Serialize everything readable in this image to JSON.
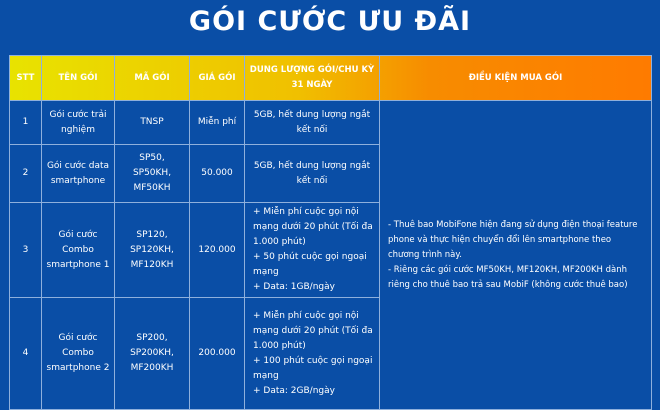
{
  "title": "GÓI CƯỚC ƯU ĐÃI",
  "headers": [
    "STT",
    "TÊN GÓI",
    "MÃ GÓI",
    "GIÁ GÓI",
    "DUNG LƯỢNG GÓI/CHU KỲ 31 NGÀY",
    "ĐIỀU KIỆN MUA GÓI"
  ],
  "rows": [
    {
      "stt": "1",
      "name": "Gói cước trải nghiệm",
      "code": "TNSP",
      "price": "Miễn phí",
      "data": [
        "5GB, hết dung lượng ngắt kết nối"
      ]
    },
    {
      "stt": "2",
      "name": "Gói cước data smartphone",
      "code": "SP50, SP50KH, MF50KH",
      "price": "50.000",
      "data": [
        "5GB, hết dung lượng ngắt kết nối"
      ]
    },
    {
      "stt": "3",
      "name": "Gói cước Combo smartphone 1",
      "code": "SP120, SP120KH, MF120KH",
      "price": "120.000",
      "data": [
        "+ Miễn phí cuộc gọi nội mạng dưới 20 phút (Tối đa 1.000 phút)",
        "+ 50 phút cuộc gọi ngoại mạng",
        "+ Data: 1GB/ngày"
      ]
    },
    {
      "stt": "4",
      "name": "Gói cước Combo smartphone 2",
      "code": "SP200, SP200KH, MF200KH",
      "price": "200.000",
      "data": [
        "+ Miễn phí cuộc gọi nội mạng dưới 20 phút (Tối đa 1.000 phút)",
        "+ 100 phút cuộc gọi ngoại mạng",
        "+ Data: 2GB/ngày"
      ]
    }
  ],
  "conditions": [
    "- Thuê bao MobiFone hiện đang sử dụng điện thoại feature phone và thực hiện chuyển đổi lên smartphone theo chương trình này.",
    "- Riêng các gói cước MF50KH, MF120KH, MF200KH dành riêng cho thuê bao trả sau MobiF (không cước thuê bao)"
  ]
}
